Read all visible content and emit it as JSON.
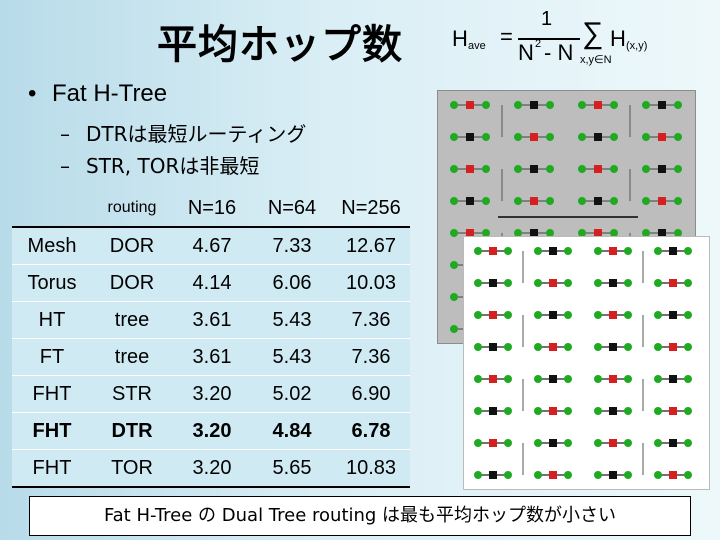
{
  "title": "平均ホップ数",
  "formula": {
    "lhs": "H",
    "lhs_sub": "ave",
    "equals": "=",
    "numerator": "1",
    "denominator": "N",
    "denominator_exp": "2",
    "denominator_tail": "- N",
    "sum_symbol": "∑",
    "sum_index": "x,y∈N",
    "term": "H",
    "term_sub": "(x,y)"
  },
  "bullet": {
    "marker": "•",
    "text": "Fat H-Tree"
  },
  "sub_bullets": [
    {
      "marker": "–",
      "text": "DTRは最短ルーティング"
    },
    {
      "marker": "–",
      "text": "STR, TORは非最短"
    }
  ],
  "table": {
    "header": [
      "",
      "routing",
      "N=16",
      "N=64",
      "N=256"
    ],
    "rows": [
      {
        "cells": [
          "Mesh",
          "DOR",
          "4.67",
          "7.33",
          "12.67"
        ],
        "bold": false
      },
      {
        "cells": [
          "Torus",
          "DOR",
          "4.14",
          "6.06",
          "10.03"
        ],
        "bold": false
      },
      {
        "cells": [
          "HT",
          "tree",
          "3.61",
          "5.43",
          "7.36"
        ],
        "bold": false
      },
      {
        "cells": [
          "FT",
          "tree",
          "3.61",
          "5.43",
          "7.36"
        ],
        "bold": false
      },
      {
        "cells": [
          "FHT",
          "STR",
          "3.20",
          "5.02",
          "6.90"
        ],
        "bold": false
      },
      {
        "cells": [
          "FHT",
          "DTR",
          "3.20",
          "4.84",
          "6.78"
        ],
        "bold": true
      },
      {
        "cells": [
          "FHT",
          "TOR",
          "3.20",
          "5.65",
          "10.83"
        ],
        "bold": false
      }
    ]
  },
  "colors": {
    "node_green": "#1faa1f",
    "router_red": "#d42020",
    "router_black": "#111111",
    "panel_gray": "#bdbdbd"
  },
  "summary": "Fat H-Tree の Dual Tree routing は最も平均ホップ数が小さい"
}
